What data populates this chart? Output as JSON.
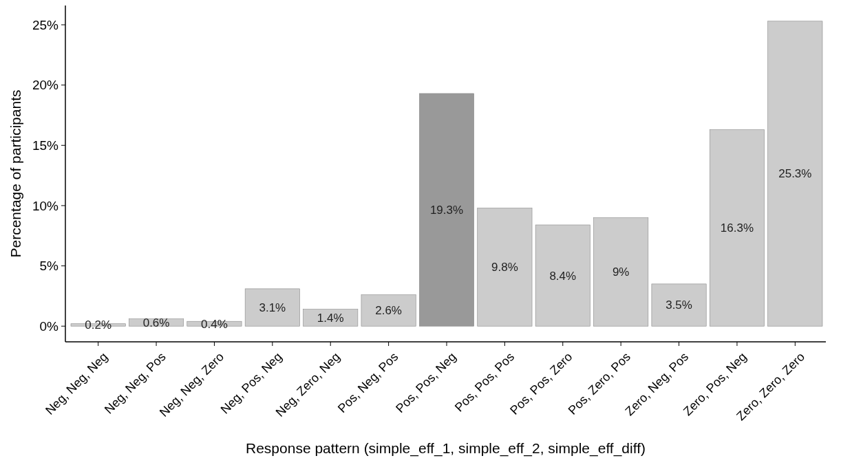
{
  "chart_data": {
    "type": "bar",
    "xlabel": "Response pattern (simple_eff_1, simple_eff_2, simple_eff_diff)",
    "ylabel": "Percentage of participants",
    "categories": [
      "Neg, Neg, Neg",
      "Neg, Neg, Pos",
      "Neg, Neg, Zero",
      "Neg, Pos, Neg",
      "Neg, Zero, Neg",
      "Pos, Neg, Pos",
      "Pos, Pos, Neg",
      "Pos, Pos, Pos",
      "Pos, Pos, Zero",
      "Pos, Zero, Pos",
      "Zero, Neg, Pos",
      "Zero, Pos, Neg",
      "Zero, Zero, Zero"
    ],
    "values": [
      0.2,
      0.6,
      0.4,
      3.1,
      1.4,
      2.6,
      19.3,
      9.8,
      8.4,
      9,
      3.5,
      16.3,
      25.3
    ],
    "value_labels": [
      "0.2%",
      "0.6%",
      "0.4%",
      "3.1%",
      "1.4%",
      "2.6%",
      "19.3%",
      "9.8%",
      "8.4%",
      "9%",
      "3.5%",
      "16.3%",
      "25.3%"
    ],
    "colors": [
      "#cccccc",
      "#cccccc",
      "#cccccc",
      "#cccccc",
      "#cccccc",
      "#cccccc",
      "#999999",
      "#cccccc",
      "#cccccc",
      "#cccccc",
      "#cccccc",
      "#cccccc",
      "#cccccc"
    ],
    "ylim": [
      -1.3,
      26.6
    ],
    "yticks": [
      {
        "value": 0,
        "label": "0%"
      },
      {
        "value": 5,
        "label": "5%"
      },
      {
        "value": 10,
        "label": "10%"
      },
      {
        "value": 15,
        "label": "15%"
      },
      {
        "value": 20,
        "label": "20%"
      },
      {
        "value": 25,
        "label": "25%"
      }
    ],
    "grid": false
  }
}
